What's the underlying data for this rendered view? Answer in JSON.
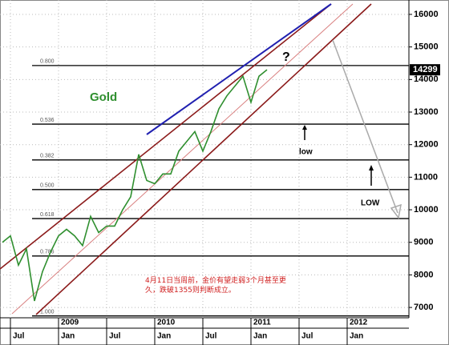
{
  "chart_data": {
    "type": "line",
    "categories": [
      null,
      "Jul",
      null,
      null,
      null,
      null,
      null,
      "Jan",
      null,
      null,
      null,
      null,
      null,
      "Jul",
      null,
      null,
      null,
      null,
      null,
      "Jan",
      null,
      null,
      null,
      null,
      null,
      "Jul",
      null,
      null,
      null,
      null,
      null,
      "Jan",
      null,
      null,
      null,
      null,
      null,
      "Jul",
      null,
      null,
      null,
      null,
      null,
      "Jan",
      null,
      null,
      null,
      null,
      null
    ],
    "year_labels": [
      "2009",
      "2010",
      "2011",
      "2012"
    ],
    "series": [
      {
        "name": "Gold",
        "color": "#2f8f2f",
        "values": [
          9000,
          9200,
          8300,
          8800,
          7200,
          8100,
          8700,
          9200,
          9400,
          9200,
          8900,
          9800,
          9300,
          9500,
          9500,
          10000,
          10400,
          11700,
          10900,
          10800,
          11100,
          11100,
          11800,
          12100,
          12400,
          11800,
          12400,
          13100,
          13500,
          13800,
          14100,
          13300,
          14100,
          14299,
          null,
          null,
          null,
          null,
          null,
          null,
          null,
          null,
          null,
          null,
          null,
          null,
          null,
          null,
          null
        ]
      }
    ],
    "last_price": 14299,
    "ylim": [
      6700,
      16400
    ],
    "yticks": [
      7000,
      8000,
      9000,
      10000,
      11000,
      12000,
      13000,
      14000,
      15000,
      16000
    ],
    "grid": true,
    "levels": [
      {
        "label": "0.800",
        "value": 14430
      },
      {
        "label": "0.536",
        "value": 12630
      },
      {
        "label": "0.382",
        "value": 11530
      },
      {
        "label": "0.500",
        "value": 10620
      },
      {
        "label": "0.618",
        "value": 9730
      },
      {
        "label": "0.786",
        "value": 8580
      },
      {
        "label": "1.000",
        "value": 6740
      }
    ],
    "annotations": {
      "question": "?",
      "low_small": "low",
      "low_big": "LOW",
      "note": "4月11日当周前，金价有望走弱3个月甚至更久，跌破1355则判断成立。"
    }
  }
}
